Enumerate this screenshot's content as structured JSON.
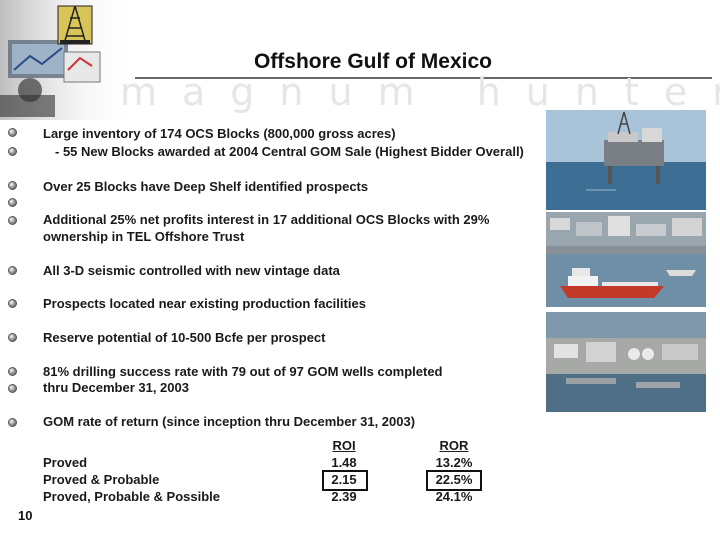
{
  "slide": {
    "title": "Offshore Gulf of Mexico",
    "watermark": "magnum hunter",
    "page_number": "10"
  },
  "bullets": [
    {
      "text": "Large inventory of 174 OCS Blocks (800,000 gross acres)"
    },
    {
      "text": "  - 55 New Blocks awarded at 2004 Central GOM Sale (Highest Bidder Overall)"
    },
    {
      "text": " Over 25 Blocks have Deep Shelf identified prospects"
    },
    {
      "text": ""
    },
    {
      "text": "Additional 25% net profits interest in 17 additional OCS Blocks with 29%"
    },
    {
      "text": "ownership in TEL Offshore Trust"
    },
    {
      "text": "All 3-D seismic controlled with new vintage data"
    },
    {
      "text": "Prospects located near existing production facilities"
    },
    {
      "text": "Reserve potential of 10-500 Bcfe per prospect"
    },
    {
      "text": "81% drilling success rate with 79 out of 97 GOM wells completed"
    },
    {
      "text": "thru December 31, 2003"
    },
    {
      "text": "GOM rate of return (since inception thru December 31, 2003)"
    }
  ],
  "returns_table": {
    "columns": [
      "ROI",
      "ROR"
    ],
    "rows": [
      {
        "label": "Proved",
        "roi": "1.48",
        "ror": "13.2%"
      },
      {
        "label": "Proved & Probable",
        "roi": "2.15",
        "ror": "22.5%"
      },
      {
        "label": "Proved, Probable & Possible",
        "roi": "2.39",
        "ror": "24.1%"
      }
    ]
  },
  "colors": {
    "text": "#1a1a1a",
    "sea": "#3d6f95",
    "boat_hull": "#c43a2a"
  },
  "images": [
    {
      "icon": "offshore-platform-photo"
    },
    {
      "icon": "harbor-supply-vessel-photo"
    },
    {
      "icon": "shore-facility-photo"
    }
  ]
}
